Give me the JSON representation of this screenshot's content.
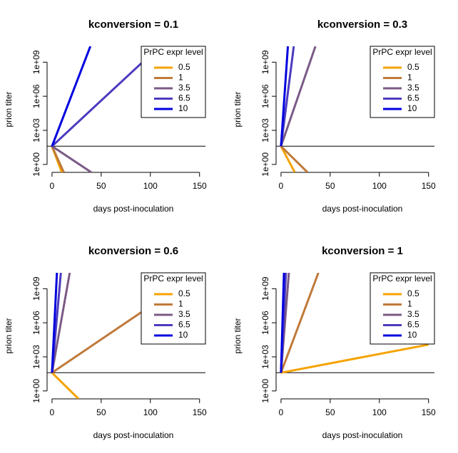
{
  "chart_data": [
    {
      "type": "line",
      "title": "kconversion = 0.1",
      "xlabel": "days post-inoculation",
      "ylabel": "prion titer",
      "legend_title": "PrPC expr level",
      "legend": "topright",
      "log_y": true,
      "xlim": [
        -5,
        156
      ],
      "ylim": [
        0.2,
        25000000000
      ],
      "xticks": [
        0,
        50,
        100,
        150
      ],
      "yticks": [
        {
          "value": 1,
          "label": "1e+00"
        },
        {
          "value": 1000,
          "label": "1e+03"
        },
        {
          "value": 1000000,
          "label": "1e+06"
        },
        {
          "value": 1000000000,
          "label": "1e+09"
        }
      ],
      "hline": 40,
      "series": [
        {
          "name": "0.5",
          "color": "#f5a300",
          "x": [
            0,
            10
          ],
          "values": [
            40,
            0.2
          ]
        },
        {
          "name": "1",
          "color": "#c07a3a",
          "x": [
            0,
            12
          ],
          "values": [
            40,
            0.2
          ]
        },
        {
          "name": "3.5",
          "color": "#7b5a86",
          "x": [
            0,
            40
          ],
          "values": [
            40,
            0.2
          ]
        },
        {
          "name": "6.5",
          "color": "#4b3bbf",
          "x": [
            0,
            92,
            109
          ],
          "values": [
            40,
            1000000000,
            25000000000
          ]
        },
        {
          "name": "10",
          "color": "#0000e0",
          "x": [
            0,
            39
          ],
          "values": [
            40,
            25000000000
          ]
        }
      ]
    },
    {
      "type": "line",
      "title": "kconversion = 0.3",
      "xlabel": "days post-inoculation",
      "ylabel": "prion titer",
      "legend_title": "PrPC expr level",
      "legend": "topright",
      "log_y": true,
      "xlim": [
        -5,
        156
      ],
      "ylim": [
        0.2,
        25000000000
      ],
      "xticks": [
        0,
        50,
        100,
        150
      ],
      "yticks": [
        {
          "value": 1,
          "label": "1e+00"
        },
        {
          "value": 1000,
          "label": "1e+03"
        },
        {
          "value": 1000000,
          "label": "1e+06"
        },
        {
          "value": 1000000000,
          "label": "1e+09"
        }
      ],
      "hline": 40,
      "series": [
        {
          "name": "0.5",
          "color": "#f5a300",
          "x": [
            0,
            14
          ],
          "values": [
            40,
            0.2
          ]
        },
        {
          "name": "1",
          "color": "#c07a3a",
          "x": [
            0,
            27
          ],
          "values": [
            40,
            0.2
          ]
        },
        {
          "name": "3.5",
          "color": "#7b5a86",
          "x": [
            0,
            35
          ],
          "values": [
            40,
            25000000000
          ]
        },
        {
          "name": "6.5",
          "color": "#4b3bbf",
          "x": [
            0,
            13
          ],
          "values": [
            40,
            25000000000
          ]
        },
        {
          "name": "10",
          "color": "#0000e0",
          "x": [
            0,
            7
          ],
          "values": [
            40,
            25000000000
          ]
        }
      ]
    },
    {
      "type": "line",
      "title": "kconversion = 0.6",
      "xlabel": "days post-inoculation",
      "ylabel": "prion titer",
      "legend_title": "PrPC expr level",
      "legend": "topright",
      "log_y": true,
      "xlim": [
        -5,
        156
      ],
      "ylim": [
        0.2,
        25000000000
      ],
      "xticks": [
        0,
        50,
        100,
        150
      ],
      "yticks": [
        {
          "value": 1,
          "label": "1e+00"
        },
        {
          "value": 1000,
          "label": "1e+03"
        },
        {
          "value": 1000000,
          "label": "1e+06"
        },
        {
          "value": 1000000000,
          "label": "1e+09"
        }
      ],
      "hline": 40,
      "series": [
        {
          "name": "0.5",
          "color": "#f5a300",
          "x": [
            0,
            27
          ],
          "values": [
            40,
            0.2
          ]
        },
        {
          "name": "1",
          "color": "#c07a3a",
          "x": [
            0,
            92,
            150
          ],
          "values": [
            40,
            10000000,
            25000000000
          ]
        },
        {
          "name": "3.5",
          "color": "#7b5a86",
          "x": [
            0,
            18
          ],
          "values": [
            40,
            25000000000
          ]
        },
        {
          "name": "6.5",
          "color": "#4b3bbf",
          "x": [
            0,
            9
          ],
          "values": [
            40,
            25000000000
          ]
        },
        {
          "name": "10",
          "color": "#0000e0",
          "x": [
            0,
            5
          ],
          "values": [
            40,
            25000000000
          ]
        }
      ]
    },
    {
      "type": "line",
      "title": "kconversion = 1",
      "xlabel": "days post-inoculation",
      "ylabel": "prion titer",
      "legend_title": "PrPC expr level",
      "legend": "topright",
      "log_y": true,
      "xlim": [
        -5,
        156
      ],
      "ylim": [
        0.2,
        25000000000
      ],
      "xticks": [
        0,
        50,
        100,
        150
      ],
      "yticks": [
        {
          "value": 1,
          "label": "1e+00"
        },
        {
          "value": 1000,
          "label": "1e+03"
        },
        {
          "value": 1000000,
          "label": "1e+06"
        },
        {
          "value": 1000000000,
          "label": "1e+09"
        }
      ],
      "hline": 40,
      "series": [
        {
          "name": "0.5",
          "color": "#f5a300",
          "x": [
            0,
            150
          ],
          "values": [
            40,
            12000
          ]
        },
        {
          "name": "1",
          "color": "#c07a3a",
          "x": [
            0,
            38
          ],
          "values": [
            40,
            25000000000
          ]
        },
        {
          "name": "3.5",
          "color": "#7b5a86",
          "x": [
            0,
            8
          ],
          "values": [
            40,
            25000000000
          ]
        },
        {
          "name": "6.5",
          "color": "#4b3bbf",
          "x": [
            0,
            5
          ],
          "values": [
            40,
            25000000000
          ]
        },
        {
          "name": "10",
          "color": "#0000e0",
          "x": [
            0,
            3
          ],
          "values": [
            40,
            25000000000
          ]
        }
      ]
    }
  ]
}
